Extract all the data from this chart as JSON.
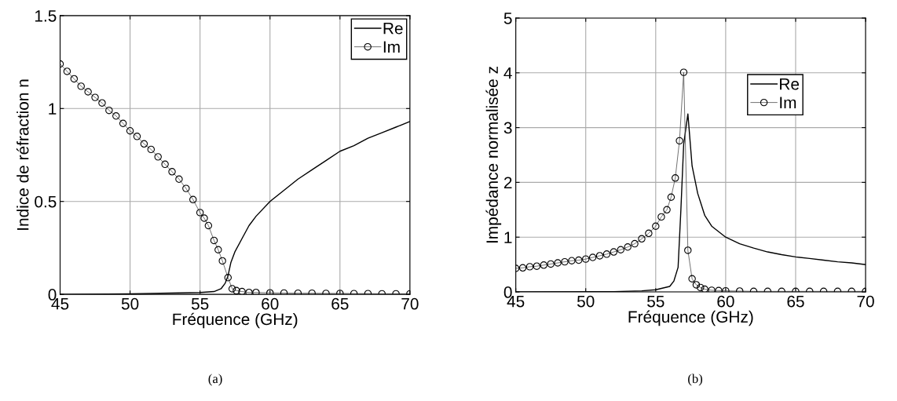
{
  "chart_data": [
    {
      "type": "line",
      "xlabel": "Fréquence (GHz)",
      "ylabel": "Indice de réfraction n",
      "xlim": [
        45,
        70
      ],
      "ylim": [
        0,
        1.5
      ],
      "xticks": [
        45,
        50,
        55,
        60,
        65,
        70
      ],
      "yticks": [
        0,
        0.5,
        1,
        1.5
      ],
      "grid": true,
      "legend": "top right",
      "annotations": [
        "(a)"
      ],
      "series": [
        {
          "name": "Re",
          "color": "#000000",
          "marker": "none",
          "x": [
            45,
            50,
            55,
            56,
            56.5,
            56.8,
            57,
            57.2,
            57.5,
            58,
            58.5,
            59,
            60,
            61,
            62,
            63,
            64,
            65,
            66,
            67,
            68,
            69,
            70
          ],
          "values": [
            0,
            0.003,
            0.01,
            0.015,
            0.03,
            0.06,
            0.1,
            0.17,
            0.23,
            0.3,
            0.37,
            0.42,
            0.5,
            0.56,
            0.62,
            0.67,
            0.72,
            0.77,
            0.8,
            0.84,
            0.87,
            0.9,
            0.93
          ]
        },
        {
          "name": "Im",
          "color": "#000000",
          "marker": "circle",
          "x": [
            45,
            45.5,
            46,
            46.5,
            47,
            47.5,
            48,
            48.5,
            49,
            49.5,
            50,
            50.5,
            51,
            51.5,
            52,
            52.5,
            53,
            53.5,
            54,
            54.5,
            55,
            55.3,
            55.6,
            56,
            56.3,
            56.6,
            57,
            57.3,
            57.6,
            58,
            58.5,
            59,
            60,
            61,
            62,
            63,
            64,
            65,
            66,
            67,
            68,
            69,
            70
          ],
          "values": [
            1.24,
            1.2,
            1.16,
            1.12,
            1.09,
            1.06,
            1.03,
            0.99,
            0.96,
            0.92,
            0.88,
            0.85,
            0.81,
            0.78,
            0.74,
            0.7,
            0.66,
            0.62,
            0.57,
            0.51,
            0.44,
            0.41,
            0.37,
            0.29,
            0.24,
            0.18,
            0.09,
            0.03,
            0.02,
            0.015,
            0.01,
            0.01,
            0.008,
            0.007,
            0.006,
            0.006,
            0.005,
            0.005,
            0.004,
            0.004,
            0.003,
            0.003,
            0.003
          ]
        }
      ]
    },
    {
      "type": "line",
      "xlabel": "Fréquence (GHz)",
      "ylabel": "Impédance normalisée z",
      "xlim": [
        45,
        70
      ],
      "ylim": [
        0,
        5
      ],
      "xticks": [
        45,
        50,
        55,
        60,
        65,
        70
      ],
      "yticks": [
        0,
        1,
        2,
        3,
        4,
        5
      ],
      "grid": true,
      "legend": "right",
      "annotations": [
        "(b)"
      ],
      "series": [
        {
          "name": "Re",
          "color": "#000000",
          "marker": "none",
          "x": [
            45,
            52,
            54,
            55,
            56,
            56.3,
            56.6,
            56.8,
            57,
            57.3,
            57.6,
            58,
            58.5,
            59,
            60,
            61,
            62,
            63,
            64,
            65,
            66,
            67,
            68,
            69,
            70
          ],
          "values": [
            0,
            0.005,
            0.02,
            0.04,
            0.1,
            0.2,
            0.45,
            1.5,
            2.7,
            3.25,
            2.3,
            1.8,
            1.4,
            1.2,
            1.0,
            0.88,
            0.8,
            0.73,
            0.68,
            0.64,
            0.61,
            0.58,
            0.55,
            0.53,
            0.5
          ]
        },
        {
          "name": "Im",
          "color": "#000000",
          "marker": "circle",
          "x": [
            45,
            45.5,
            46,
            46.5,
            47,
            47.5,
            48,
            48.5,
            49,
            49.5,
            50,
            50.5,
            51,
            51.5,
            52,
            52.5,
            53,
            53.5,
            54,
            54.5,
            55,
            55.4,
            55.8,
            56.1,
            56.4,
            56.7,
            57,
            57.3,
            57.6,
            57.9,
            58.2,
            58.5,
            59,
            59.5,
            60,
            61,
            62,
            63,
            64,
            65,
            66,
            67,
            68,
            69,
            70
          ],
          "values": [
            0.43,
            0.44,
            0.46,
            0.47,
            0.49,
            0.51,
            0.53,
            0.55,
            0.57,
            0.58,
            0.6,
            0.63,
            0.66,
            0.69,
            0.73,
            0.77,
            0.82,
            0.88,
            0.97,
            1.07,
            1.2,
            1.37,
            1.5,
            1.73,
            2.08,
            2.76,
            4.01,
            0.76,
            0.24,
            0.13,
            0.08,
            0.05,
            0.03,
            0.025,
            0.02,
            0.015,
            0.01,
            0.01,
            0.01,
            0.01,
            0.01,
            0.01,
            0.01,
            0.01,
            0.01
          ]
        }
      ]
    }
  ]
}
